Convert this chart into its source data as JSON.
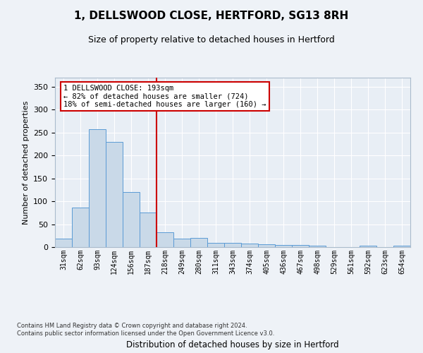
{
  "title": "1, DELLSWOOD CLOSE, HERTFORD, SG13 8RH",
  "subtitle": "Size of property relative to detached houses in Hertford",
  "xlabel": "Distribution of detached houses by size in Hertford",
  "ylabel": "Number of detached properties",
  "bin_labels": [
    "31sqm",
    "62sqm",
    "93sqm",
    "124sqm",
    "156sqm",
    "187sqm",
    "218sqm",
    "249sqm",
    "280sqm",
    "311sqm",
    "343sqm",
    "374sqm",
    "405sqm",
    "436sqm",
    "467sqm",
    "498sqm",
    "529sqm",
    "561sqm",
    "592sqm",
    "623sqm",
    "654sqm"
  ],
  "bar_values": [
    18,
    86,
    257,
    229,
    120,
    75,
    32,
    18,
    20,
    10,
    10,
    7,
    6,
    5,
    4,
    3,
    0,
    0,
    3,
    0,
    3
  ],
  "bar_color": "#c9d9e8",
  "bar_edge_color": "#5b9bd5",
  "property_bin_index": 5,
  "vline_color": "#cc0000",
  "annotation_line1": "1 DELLSWOOD CLOSE: 193sqm",
  "annotation_line2": "← 82% of detached houses are smaller (724)",
  "annotation_line3": "18% of semi-detached houses are larger (160) →",
  "annotation_box_color": "#ffffff",
  "annotation_box_edge": "#cc0000",
  "footer_text": "Contains HM Land Registry data © Crown copyright and database right 2024.\nContains public sector information licensed under the Open Government Licence v3.0.",
  "ylim": [
    0,
    370
  ],
  "yticks": [
    0,
    50,
    100,
    150,
    200,
    250,
    300,
    350
  ],
  "background_color": "#eef2f7",
  "plot_background": "#e8eef5"
}
